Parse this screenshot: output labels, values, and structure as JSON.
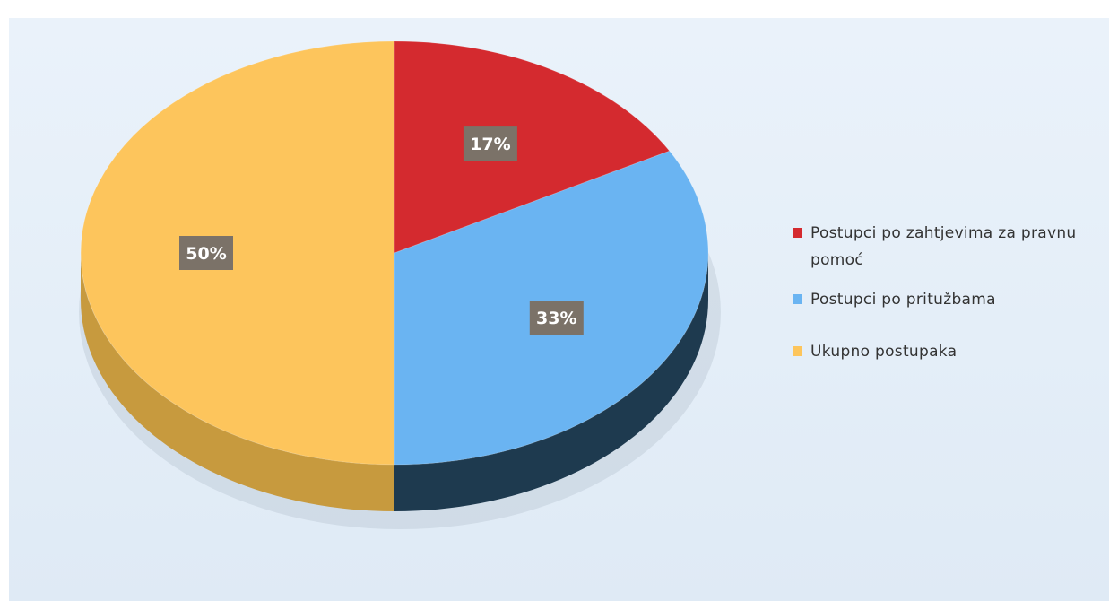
{
  "chart_data": {
    "type": "pie",
    "style": "3d",
    "slices": [
      {
        "name": "Postupci po zahtjevima za pravnu pomoć",
        "value": 17,
        "label": "17%",
        "color": "#d42a2f",
        "side_color": "#9a1c20"
      },
      {
        "name": "Postupci po pritužbama",
        "value": 33,
        "label": "33%",
        "color": "#6ab4f2",
        "side_color": "#1e3a4f"
      },
      {
        "name": "Ukupno postupaka",
        "value": 50,
        "label": "50%",
        "color": "#fdc55c",
        "side_color": "#c79a3e"
      }
    ],
    "legend": {
      "placement": "right"
    }
  }
}
